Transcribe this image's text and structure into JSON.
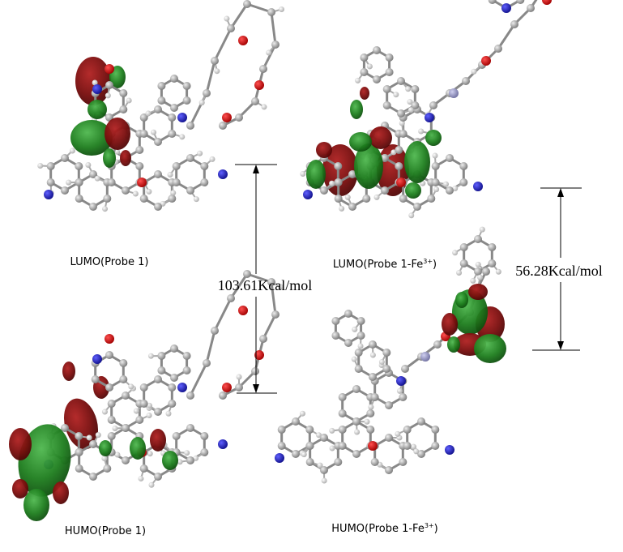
{
  "panels": [
    {
      "label": "LUMO(Probe 1)"
    },
    {
      "label": "LUMO(Probe 1-Fe",
      "label_sup": "3+",
      "label_end": ")"
    },
    {
      "label": "HUMO(Probe 1)"
    },
    {
      "label": "HUMO(Probe 1-Fe",
      "label_sup": "3+",
      "label_end": ")"
    }
  ],
  "gaps": [
    {
      "label": "103.61Kcal/mol"
    },
    {
      "label": "56.28Kcal/mol"
    }
  ]
}
